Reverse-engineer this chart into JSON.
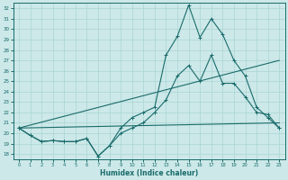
{
  "xlabel": "Humidex (Indice chaleur)",
  "xlim": [
    -0.5,
    23.5
  ],
  "ylim": [
    17.5,
    32.5
  ],
  "yticks": [
    18,
    19,
    20,
    21,
    22,
    23,
    24,
    25,
    26,
    27,
    28,
    29,
    30,
    31,
    32
  ],
  "xticks": [
    0,
    1,
    2,
    3,
    4,
    5,
    6,
    7,
    8,
    9,
    10,
    11,
    12,
    13,
    14,
    15,
    16,
    17,
    18,
    19,
    20,
    21,
    22,
    23
  ],
  "bg_color": "#cce8e8",
  "line_color": "#1a6b6b",
  "grid_color": "#aad4d4",
  "line1_x": [
    0,
    1,
    2,
    3,
    4,
    5,
    6,
    7,
    8,
    9,
    10,
    11,
    12,
    13,
    14,
    15,
    16,
    17,
    18,
    19,
    20,
    21,
    22,
    23
  ],
  "line1_y": [
    20.5,
    19.8,
    19.2,
    19.3,
    19.2,
    19.2,
    19.5,
    17.8,
    18.8,
    20.5,
    21.5,
    22.0,
    22.5,
    27.5,
    29.3,
    32.3,
    29.2,
    31.0,
    29.5,
    27.0,
    25.5,
    22.5,
    21.5,
    20.5
  ],
  "line2_x": [
    0,
    1,
    2,
    3,
    4,
    5,
    6,
    7,
    8,
    9,
    10,
    11,
    12,
    13,
    14,
    15,
    16,
    17,
    18,
    19,
    20,
    21,
    22,
    23
  ],
  "line2_y": [
    20.5,
    19.8,
    19.2,
    19.3,
    19.2,
    19.2,
    19.5,
    17.8,
    18.8,
    20.0,
    20.5,
    21.0,
    22.0,
    23.2,
    25.5,
    26.5,
    25.0,
    27.5,
    24.8,
    24.8,
    23.5,
    22.0,
    21.8,
    20.5
  ],
  "line3_x": [
    0,
    23
  ],
  "line3_y": [
    20.5,
    21.0
  ],
  "line4_x": [
    0,
    23
  ],
  "line4_y": [
    20.5,
    27.0
  ]
}
